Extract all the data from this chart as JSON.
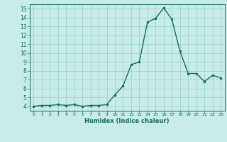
{
  "x": [
    0,
    1,
    2,
    3,
    4,
    5,
    6,
    7,
    8,
    9,
    10,
    11,
    12,
    13,
    14,
    15,
    16,
    17,
    18,
    19,
    20,
    21,
    22,
    23
  ],
  "y": [
    4.0,
    4.1,
    4.1,
    4.2,
    4.1,
    4.2,
    4.0,
    4.1,
    4.1,
    4.2,
    5.3,
    6.3,
    8.7,
    9.0,
    13.5,
    13.9,
    15.1,
    13.8,
    10.2,
    7.7,
    7.7,
    6.8,
    7.5,
    7.2
  ],
  "xlabel": "Humidex (Indice chaleur)",
  "xlim": [
    -0.5,
    23.5
  ],
  "ylim": [
    3.5,
    15.5
  ],
  "yticks": [
    4,
    5,
    6,
    7,
    8,
    9,
    10,
    11,
    12,
    13,
    14,
    15
  ],
  "xticks": [
    0,
    1,
    2,
    3,
    4,
    5,
    6,
    7,
    8,
    9,
    10,
    11,
    12,
    13,
    14,
    15,
    16,
    17,
    18,
    19,
    20,
    21,
    22,
    23
  ],
  "bg_color": "#c8ece6",
  "grid_color": "#a0d4cc",
  "line_color": "#1a6b5a",
  "marker_color": "#1a6b5a",
  "tick_label_color": "#1a6b5a",
  "xlabel_color": "#1a6b5a",
  "spine_color": "#1a6b5a"
}
